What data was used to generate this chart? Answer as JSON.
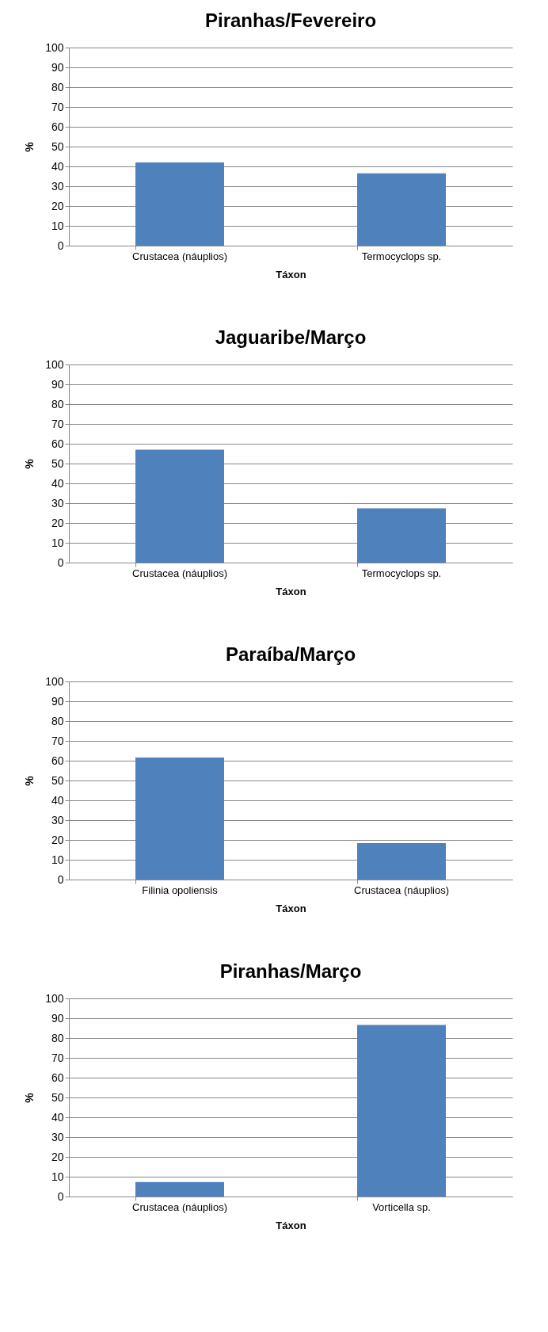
{
  "chart_data": [
    {
      "type": "bar",
      "title": "Piranhas/Fevereiro",
      "xlabel": "Táxon",
      "ylabel": "%",
      "categories": [
        "Crustacea (náuplios)",
        "Termocyclops sp."
      ],
      "values": [
        42,
        36.5
      ],
      "color": "#4f81bd",
      "ylim": [
        0,
        100
      ],
      "yticks": [
        0,
        10,
        20,
        30,
        40,
        50,
        60,
        70,
        80,
        90,
        100
      ],
      "grid": "y"
    },
    {
      "type": "bar",
      "title": "Jaguaribe/Março",
      "xlabel": "Táxon",
      "ylabel": "%",
      "categories": [
        "Crustacea (náuplios)",
        "Termocyclops sp."
      ],
      "values": [
        57,
        27.4
      ],
      "color": "#4f81bd",
      "ylim": [
        0,
        100
      ],
      "yticks": [
        0,
        10,
        20,
        30,
        40,
        50,
        60,
        70,
        80,
        90,
        100
      ],
      "grid": "y"
    },
    {
      "type": "bar",
      "title": "Paraíba/Março",
      "xlabel": "Táxon",
      "ylabel": "%",
      "categories": [
        "Filinia opoliensis",
        "Crustacea (náuplios)"
      ],
      "values": [
        61.6,
        18.4
      ],
      "color": "#4f81bd",
      "ylim": [
        0,
        100
      ],
      "yticks": [
        0,
        10,
        20,
        30,
        40,
        50,
        60,
        70,
        80,
        90,
        100
      ],
      "grid": "y"
    },
    {
      "type": "bar",
      "title": "Piranhas/Março",
      "xlabel": "Táxon",
      "ylabel": "%",
      "categories": [
        "Crustacea (náuplios)",
        "Vorticella sp."
      ],
      "values": [
        7.3,
        86.6
      ],
      "color": "#4f81bd",
      "ylim": [
        0,
        100
      ],
      "yticks": [
        0,
        10,
        20,
        30,
        40,
        50,
        60,
        70,
        80,
        90,
        100
      ],
      "grid": "y"
    }
  ]
}
